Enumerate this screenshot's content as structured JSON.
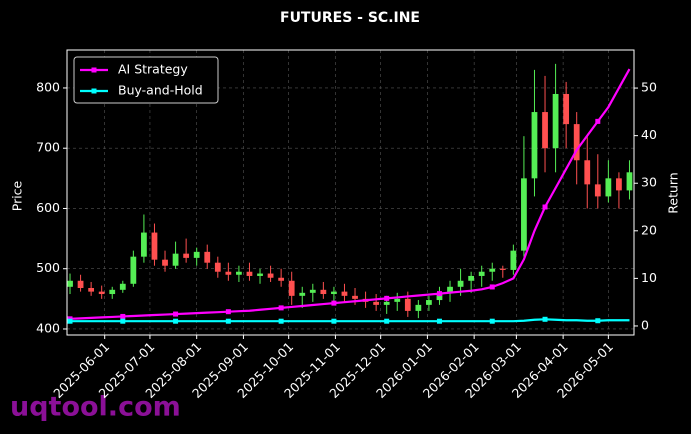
{
  "chart_data": {
    "type": "candlestick",
    "title": "FUTURES - SC.INE",
    "y_label": "Price",
    "y2_label": "Return",
    "watermark": "uqtool.com",
    "legend": "upper left",
    "grid": true,
    "up_color": "#55ee55",
    "down_color": "#ff5050",
    "x": [
      "2025-05-09",
      "2025-05-16",
      "2025-05-23",
      "2025-05-30",
      "2025-06-06",
      "2025-06-13",
      "2025-06-20",
      "2025-06-27",
      "2025-07-04",
      "2025-07-11",
      "2025-07-18",
      "2025-07-25",
      "2025-08-01",
      "2025-08-08",
      "2025-08-15",
      "2025-08-22",
      "2025-08-29",
      "2025-09-05",
      "2025-09-12",
      "2025-09-19",
      "2025-09-26",
      "2025-10-03",
      "2025-10-10",
      "2025-10-17",
      "2025-10-24",
      "2025-10-31",
      "2025-11-07",
      "2025-11-14",
      "2025-11-21",
      "2025-11-28",
      "2025-12-05",
      "2025-12-12",
      "2025-12-19",
      "2025-12-26",
      "2026-01-02",
      "2026-01-09",
      "2026-01-16",
      "2026-01-23",
      "2026-01-30",
      "2026-02-06",
      "2026-02-13",
      "2026-02-20",
      "2026-02-27",
      "2026-03-06",
      "2026-03-13",
      "2026-03-20",
      "2026-03-27",
      "2026-04-03",
      "2026-04-10",
      "2026-04-17",
      "2026-04-24",
      "2026-05-01",
      "2026-05-08",
      "2026-05-15"
    ],
    "open": [
      470,
      480,
      468,
      462,
      458,
      465,
      475,
      520,
      560,
      515,
      505,
      525,
      518,
      528,
      510,
      495,
      490,
      495,
      488,
      492,
      485,
      480,
      455,
      460,
      465,
      458,
      462,
      455,
      450,
      445,
      440,
      445,
      450,
      430,
      440,
      448,
      460,
      470,
      480,
      488,
      495,
      500,
      498,
      530,
      650,
      760,
      700,
      790,
      740,
      680,
      640,
      620,
      650,
      630
    ],
    "high": [
      492,
      490,
      478,
      472,
      470,
      480,
      530,
      590,
      575,
      530,
      545,
      550,
      535,
      540,
      520,
      510,
      505,
      510,
      500,
      505,
      500,
      495,
      470,
      475,
      478,
      470,
      475,
      468,
      462,
      458,
      455,
      460,
      462,
      448,
      455,
      470,
      480,
      500,
      495,
      505,
      510,
      505,
      540,
      720,
      830,
      820,
      840,
      810,
      760,
      720,
      690,
      680,
      660,
      680
    ],
    "low": [
      458,
      462,
      455,
      450,
      450,
      460,
      470,
      510,
      505,
      495,
      500,
      510,
      505,
      500,
      485,
      480,
      478,
      480,
      475,
      478,
      470,
      440,
      435,
      445,
      450,
      440,
      445,
      440,
      435,
      430,
      425,
      430,
      420,
      418,
      430,
      440,
      445,
      455,
      460,
      470,
      480,
      485,
      490,
      520,
      620,
      660,
      660,
      700,
      640,
      600,
      600,
      610,
      600,
      615
    ],
    "close": [
      480,
      468,
      462,
      458,
      465,
      475,
      520,
      560,
      515,
      505,
      525,
      518,
      528,
      510,
      495,
      490,
      495,
      488,
      492,
      485,
      480,
      455,
      460,
      465,
      458,
      462,
      455,
      450,
      445,
      440,
      445,
      450,
      430,
      440,
      448,
      460,
      470,
      480,
      488,
      495,
      500,
      498,
      530,
      650,
      760,
      700,
      790,
      740,
      680,
      640,
      620,
      650,
      630,
      660
    ],
    "series": [
      {
        "name": "AI Strategy",
        "color": "#ff00ff",
        "axis": "y2",
        "values": [
          1.5,
          1.6,
          1.7,
          1.8,
          1.9,
          2.0,
          2.1,
          2.2,
          2.3,
          2.4,
          2.5,
          2.6,
          2.7,
          2.8,
          2.9,
          3.0,
          3.1,
          3.2,
          3.4,
          3.6,
          3.8,
          4.0,
          4.2,
          4.4,
          4.6,
          4.8,
          5.0,
          5.2,
          5.4,
          5.6,
          5.8,
          6.0,
          6.2,
          6.4,
          6.6,
          6.8,
          7.0,
          7.2,
          7.4,
          7.7,
          8.2,
          9.0,
          10.0,
          14,
          20,
          25,
          29,
          33,
          37,
          40,
          43,
          46,
          50,
          54
        ]
      },
      {
        "name": "Buy-and-Hold",
        "color": "#00ffff",
        "axis": "y2",
        "values": [
          1.0,
          1.0,
          1.0,
          1.0,
          1.0,
          1.0,
          1.0,
          1.0,
          1.0,
          1.0,
          1.0,
          1.0,
          1.0,
          1.0,
          1.0,
          1.0,
          1.0,
          1.0,
          1.0,
          1.0,
          1.0,
          1.0,
          1.0,
          1.0,
          1.0,
          1.0,
          1.0,
          1.0,
          1.0,
          1.0,
          1.0,
          1.0,
          1.0,
          1.0,
          1.0,
          1.0,
          1.0,
          1.0,
          1.0,
          1.0,
          1.0,
          1.0,
          1.0,
          1.1,
          1.3,
          1.4,
          1.3,
          1.2,
          1.2,
          1.1,
          1.1,
          1.2,
          1.2,
          1.2
        ]
      }
    ],
    "xlim": [
      "2025-05-07",
      "2026-05-18"
    ],
    "xticks": [
      "2025-06-01",
      "2025-07-01",
      "2025-08-01",
      "2025-09-01",
      "2025-10-01",
      "2025-11-01",
      "2025-12-01",
      "2026-01-01",
      "2026-02-01",
      "2026-03-01",
      "2026-04-01",
      "2026-05-01"
    ],
    "ylim": [
      390,
      863
    ],
    "yticks": [
      400,
      500,
      600,
      700,
      800
    ],
    "y2lim": [
      -1.9,
      58
    ],
    "y2ticks": [
      0,
      10,
      20,
      30,
      40,
      50
    ]
  }
}
